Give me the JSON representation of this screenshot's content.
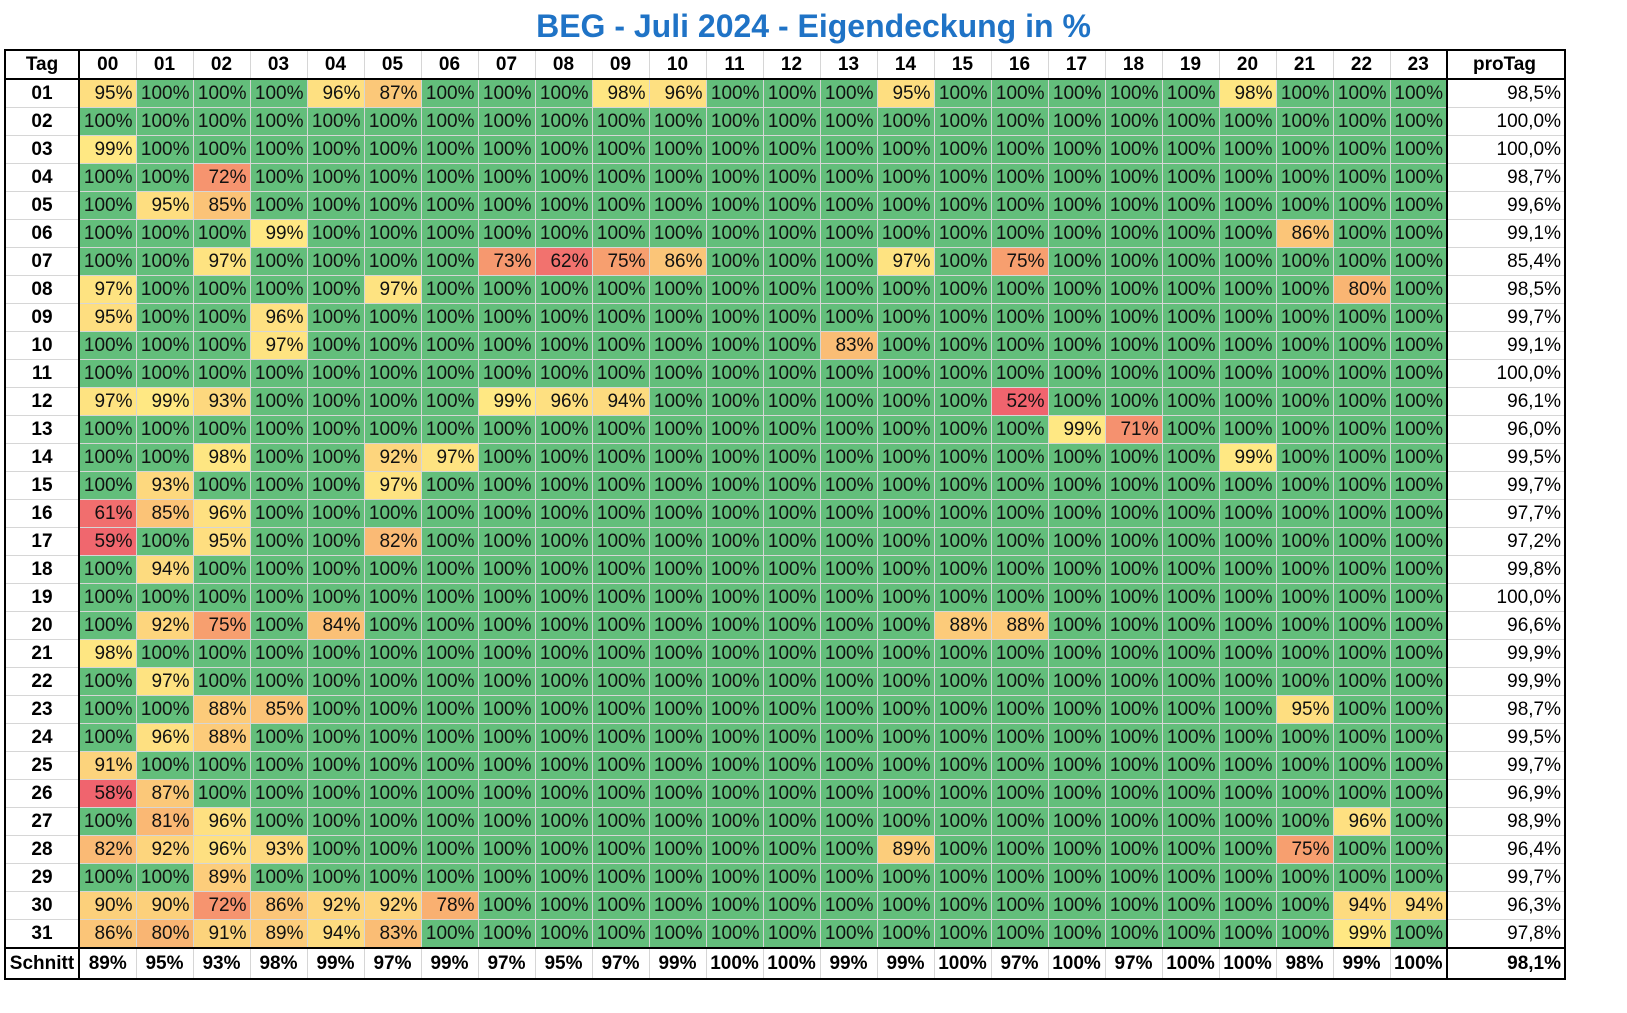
{
  "title": "BEG - Juli 2024 - Eigendeckung in %",
  "corner_label": "Tag",
  "total_label": "proTag",
  "footer_label": "Schnitt",
  "hours": [
    "00",
    "01",
    "02",
    "03",
    "04",
    "05",
    "06",
    "07",
    "08",
    "09",
    "10",
    "11",
    "12",
    "13",
    "14",
    "15",
    "16",
    "17",
    "18",
    "19",
    "20",
    "21",
    "22",
    "23"
  ],
  "color_scale": {
    "low": "#f0646e",
    "mid": "#ffeb84",
    "high": "#63be7b"
  },
  "rows": [
    {
      "day": "01",
      "values": [
        95,
        100,
        100,
        100,
        96,
        87,
        100,
        100,
        100,
        98,
        96,
        100,
        100,
        100,
        95,
        100,
        100,
        100,
        100,
        100,
        98,
        100,
        100,
        100
      ],
      "total": "98,5%"
    },
    {
      "day": "02",
      "values": [
        100,
        100,
        100,
        100,
        100,
        100,
        100,
        100,
        100,
        100,
        100,
        100,
        100,
        100,
        100,
        100,
        100,
        100,
        100,
        100,
        100,
        100,
        100,
        100
      ],
      "total": "100,0%"
    },
    {
      "day": "03",
      "values": [
        99,
        100,
        100,
        100,
        100,
        100,
        100,
        100,
        100,
        100,
        100,
        100,
        100,
        100,
        100,
        100,
        100,
        100,
        100,
        100,
        100,
        100,
        100,
        100
      ],
      "total": "100,0%"
    },
    {
      "day": "04",
      "values": [
        100,
        100,
        72,
        100,
        100,
        100,
        100,
        100,
        100,
        100,
        100,
        100,
        100,
        100,
        100,
        100,
        100,
        100,
        100,
        100,
        100,
        100,
        100,
        100
      ],
      "total": "98,7%"
    },
    {
      "day": "05",
      "values": [
        100,
        95,
        85,
        100,
        100,
        100,
        100,
        100,
        100,
        100,
        100,
        100,
        100,
        100,
        100,
        100,
        100,
        100,
        100,
        100,
        100,
        100,
        100,
        100
      ],
      "total": "99,6%"
    },
    {
      "day": "06",
      "values": [
        100,
        100,
        100,
        99,
        100,
        100,
        100,
        100,
        100,
        100,
        100,
        100,
        100,
        100,
        100,
        100,
        100,
        100,
        100,
        100,
        100,
        86,
        100,
        100
      ],
      "total": "99,1%"
    },
    {
      "day": "07",
      "values": [
        100,
        100,
        97,
        100,
        100,
        100,
        100,
        73,
        62,
        75,
        86,
        100,
        100,
        100,
        97,
        100,
        75,
        100,
        100,
        100,
        100,
        100,
        100,
        100
      ],
      "total": "85,4%"
    },
    {
      "day": "08",
      "values": [
        97,
        100,
        100,
        100,
        100,
        97,
        100,
        100,
        100,
        100,
        100,
        100,
        100,
        100,
        100,
        100,
        100,
        100,
        100,
        100,
        100,
        100,
        80,
        100
      ],
      "total": "98,5%"
    },
    {
      "day": "09",
      "values": [
        95,
        100,
        100,
        96,
        100,
        100,
        100,
        100,
        100,
        100,
        100,
        100,
        100,
        100,
        100,
        100,
        100,
        100,
        100,
        100,
        100,
        100,
        100,
        100
      ],
      "total": "99,7%"
    },
    {
      "day": "10",
      "values": [
        100,
        100,
        100,
        97,
        100,
        100,
        100,
        100,
        100,
        100,
        100,
        100,
        100,
        83,
        100,
        100,
        100,
        100,
        100,
        100,
        100,
        100,
        100,
        100
      ],
      "total": "99,1%"
    },
    {
      "day": "11",
      "values": [
        100,
        100,
        100,
        100,
        100,
        100,
        100,
        100,
        100,
        100,
        100,
        100,
        100,
        100,
        100,
        100,
        100,
        100,
        100,
        100,
        100,
        100,
        100,
        100
      ],
      "total": "100,0%"
    },
    {
      "day": "12",
      "values": [
        97,
        99,
        93,
        100,
        100,
        100,
        100,
        99,
        96,
        94,
        100,
        100,
        100,
        100,
        100,
        100,
        52,
        100,
        100,
        100,
        100,
        100,
        100,
        100
      ],
      "total": "96,1%"
    },
    {
      "day": "13",
      "values": [
        100,
        100,
        100,
        100,
        100,
        100,
        100,
        100,
        100,
        100,
        100,
        100,
        100,
        100,
        100,
        100,
        100,
        99,
        71,
        100,
        100,
        100,
        100,
        100
      ],
      "total": "96,0%"
    },
    {
      "day": "14",
      "values": [
        100,
        100,
        98,
        100,
        100,
        92,
        97,
        100,
        100,
        100,
        100,
        100,
        100,
        100,
        100,
        100,
        100,
        100,
        100,
        100,
        99,
        100,
        100,
        100
      ],
      "total": "99,5%"
    },
    {
      "day": "15",
      "values": [
        100,
        93,
        100,
        100,
        100,
        97,
        100,
        100,
        100,
        100,
        100,
        100,
        100,
        100,
        100,
        100,
        100,
        100,
        100,
        100,
        100,
        100,
        100,
        100
      ],
      "total": "99,7%"
    },
    {
      "day": "16",
      "values": [
        61,
        85,
        96,
        100,
        100,
        100,
        100,
        100,
        100,
        100,
        100,
        100,
        100,
        100,
        100,
        100,
        100,
        100,
        100,
        100,
        100,
        100,
        100,
        100
      ],
      "total": "97,7%"
    },
    {
      "day": "17",
      "values": [
        59,
        100,
        95,
        100,
        100,
        82,
        100,
        100,
        100,
        100,
        100,
        100,
        100,
        100,
        100,
        100,
        100,
        100,
        100,
        100,
        100,
        100,
        100,
        100
      ],
      "total": "97,2%"
    },
    {
      "day": "18",
      "values": [
        100,
        94,
        100,
        100,
        100,
        100,
        100,
        100,
        100,
        100,
        100,
        100,
        100,
        100,
        100,
        100,
        100,
        100,
        100,
        100,
        100,
        100,
        100,
        100
      ],
      "total": "99,8%"
    },
    {
      "day": "19",
      "values": [
        100,
        100,
        100,
        100,
        100,
        100,
        100,
        100,
        100,
        100,
        100,
        100,
        100,
        100,
        100,
        100,
        100,
        100,
        100,
        100,
        100,
        100,
        100,
        100
      ],
      "total": "100,0%"
    },
    {
      "day": "20",
      "values": [
        100,
        92,
        75,
        100,
        84,
        100,
        100,
        100,
        100,
        100,
        100,
        100,
        100,
        100,
        100,
        88,
        88,
        100,
        100,
        100,
        100,
        100,
        100,
        100
      ],
      "total": "96,6%"
    },
    {
      "day": "21",
      "values": [
        98,
        100,
        100,
        100,
        100,
        100,
        100,
        100,
        100,
        100,
        100,
        100,
        100,
        100,
        100,
        100,
        100,
        100,
        100,
        100,
        100,
        100,
        100,
        100
      ],
      "total": "99,9%"
    },
    {
      "day": "22",
      "values": [
        100,
        97,
        100,
        100,
        100,
        100,
        100,
        100,
        100,
        100,
        100,
        100,
        100,
        100,
        100,
        100,
        100,
        100,
        100,
        100,
        100,
        100,
        100,
        100
      ],
      "total": "99,9%"
    },
    {
      "day": "23",
      "values": [
        100,
        100,
        88,
        85,
        100,
        100,
        100,
        100,
        100,
        100,
        100,
        100,
        100,
        100,
        100,
        100,
        100,
        100,
        100,
        100,
        100,
        95,
        100,
        100
      ],
      "total": "98,7%"
    },
    {
      "day": "24",
      "values": [
        100,
        96,
        88,
        100,
        100,
        100,
        100,
        100,
        100,
        100,
        100,
        100,
        100,
        100,
        100,
        100,
        100,
        100,
        100,
        100,
        100,
        100,
        100,
        100
      ],
      "total": "99,5%"
    },
    {
      "day": "25",
      "values": [
        91,
        100,
        100,
        100,
        100,
        100,
        100,
        100,
        100,
        100,
        100,
        100,
        100,
        100,
        100,
        100,
        100,
        100,
        100,
        100,
        100,
        100,
        100,
        100
      ],
      "total": "99,7%"
    },
    {
      "day": "26",
      "values": [
        58,
        87,
        100,
        100,
        100,
        100,
        100,
        100,
        100,
        100,
        100,
        100,
        100,
        100,
        100,
        100,
        100,
        100,
        100,
        100,
        100,
        100,
        100,
        100
      ],
      "total": "96,9%"
    },
    {
      "day": "27",
      "values": [
        100,
        81,
        96,
        100,
        100,
        100,
        100,
        100,
        100,
        100,
        100,
        100,
        100,
        100,
        100,
        100,
        100,
        100,
        100,
        100,
        100,
        100,
        96,
        100
      ],
      "total": "98,9%"
    },
    {
      "day": "28",
      "values": [
        82,
        92,
        96,
        93,
        100,
        100,
        100,
        100,
        100,
        100,
        100,
        100,
        100,
        100,
        89,
        100,
        100,
        100,
        100,
        100,
        100,
        75,
        100,
        100
      ],
      "total": "96,4%"
    },
    {
      "day": "29",
      "values": [
        100,
        100,
        89,
        100,
        100,
        100,
        100,
        100,
        100,
        100,
        100,
        100,
        100,
        100,
        100,
        100,
        100,
        100,
        100,
        100,
        100,
        100,
        100,
        100
      ],
      "total": "99,7%"
    },
    {
      "day": "30",
      "values": [
        90,
        90,
        72,
        86,
        92,
        92,
        78,
        100,
        100,
        100,
        100,
        100,
        100,
        100,
        100,
        100,
        100,
        100,
        100,
        100,
        100,
        100,
        94,
        94
      ],
      "total": "96,3%"
    },
    {
      "day": "31",
      "values": [
        86,
        80,
        91,
        89,
        94,
        83,
        100,
        100,
        100,
        100,
        100,
        100,
        100,
        100,
        100,
        100,
        100,
        100,
        100,
        100,
        100,
        100,
        99,
        100
      ],
      "total": "97,8%"
    }
  ],
  "averages": [
    "89%",
    "95%",
    "93%",
    "98%",
    "99%",
    "97%",
    "99%",
    "97%",
    "95%",
    "97%",
    "99%",
    "100%",
    "100%",
    "99%",
    "99%",
    "100%",
    "97%",
    "100%",
    "97%",
    "100%",
    "100%",
    "98%",
    "99%",
    "100%"
  ],
  "overall_total": "98,1%",
  "chart_data": {
    "type": "heatmap",
    "title": "BEG - Juli 2024 - Eigendeckung in %",
    "x": [
      "00",
      "01",
      "02",
      "03",
      "04",
      "05",
      "06",
      "07",
      "08",
      "09",
      "10",
      "11",
      "12",
      "13",
      "14",
      "15",
      "16",
      "17",
      "18",
      "19",
      "20",
      "21",
      "22",
      "23"
    ],
    "y": [
      "01",
      "02",
      "03",
      "04",
      "05",
      "06",
      "07",
      "08",
      "09",
      "10",
      "11",
      "12",
      "13",
      "14",
      "15",
      "16",
      "17",
      "18",
      "19",
      "20",
      "21",
      "22",
      "23",
      "24",
      "25",
      "26",
      "27",
      "28",
      "29",
      "30",
      "31"
    ],
    "unit": "%"
  }
}
